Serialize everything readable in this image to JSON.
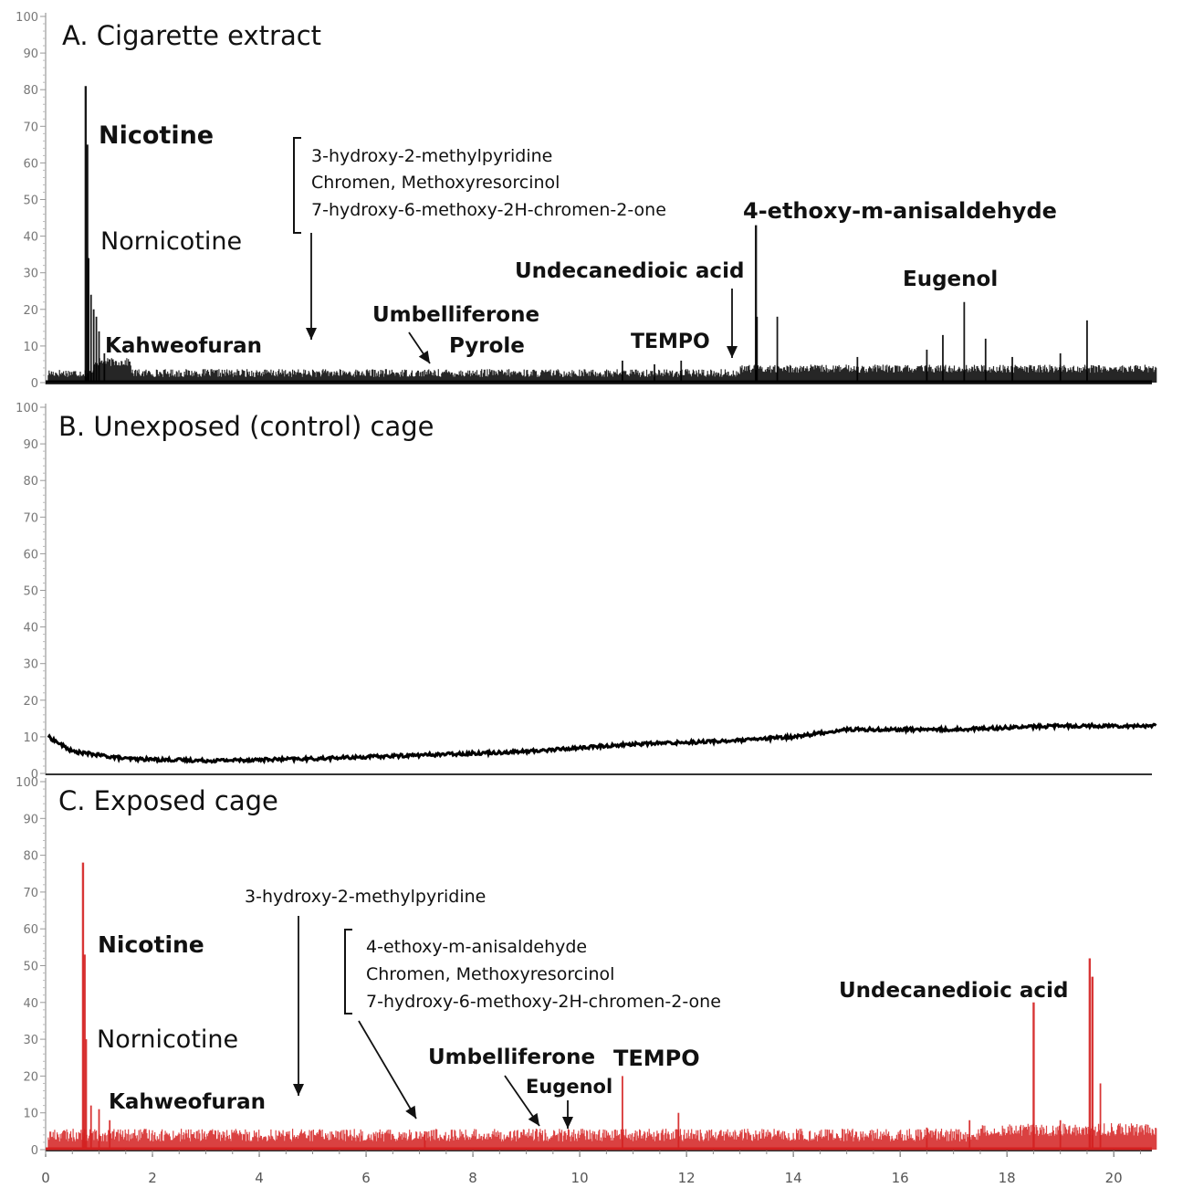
{
  "chart_data": [
    {
      "type": "line",
      "title": "A. Cigarette extract",
      "color": "#000000",
      "xlim": [
        0,
        20.8
      ],
      "ylim": [
        0,
        100
      ],
      "y_ticks": [
        "0",
        "10",
        "20",
        "30",
        "40",
        "50",
        "60",
        "70",
        "80",
        "90",
        "100"
      ],
      "peaks": [
        {
          "x": 0.75,
          "y": 81
        },
        {
          "x": 0.78,
          "y": 65
        },
        {
          "x": 0.8,
          "y": 34
        },
        {
          "x": 0.85,
          "y": 24
        },
        {
          "x": 0.9,
          "y": 20
        },
        {
          "x": 0.95,
          "y": 18
        },
        {
          "x": 1.0,
          "y": 14
        },
        {
          "x": 1.1,
          "y": 8
        },
        {
          "x": 10.8,
          "y": 6
        },
        {
          "x": 11.4,
          "y": 5
        },
        {
          "x": 11.9,
          "y": 6
        },
        {
          "x": 13.3,
          "y": 43
        },
        {
          "x": 13.32,
          "y": 18
        },
        {
          "x": 13.7,
          "y": 18
        },
        {
          "x": 15.2,
          "y": 7
        },
        {
          "x": 16.5,
          "y": 9
        },
        {
          "x": 16.8,
          "y": 13
        },
        {
          "x": 17.2,
          "y": 22
        },
        {
          "x": 17.6,
          "y": 12
        },
        {
          "x": 18.1,
          "y": 7
        },
        {
          "x": 19.0,
          "y": 8
        },
        {
          "x": 19.5,
          "y": 17
        }
      ],
      "annotations": [
        {
          "text": "Nicotine"
        },
        {
          "text": "Nornicotine"
        },
        {
          "text": "Kahweofuran"
        },
        {
          "text": "3-hydroxy-2-methylpyridine"
        },
        {
          "text": "Chromen, Methoxyresorcinol"
        },
        {
          "text": "7-hydroxy-6-methoxy-2H-chromen-2-one"
        },
        {
          "text": "Umbelliferone"
        },
        {
          "text": "Pyrole"
        },
        {
          "text": "Undecanedioic acid"
        },
        {
          "text": "TEMPO"
        },
        {
          "text": "4-ethoxy-m-anisaldehyde"
        },
        {
          "text": "Eugenol"
        }
      ]
    },
    {
      "type": "line",
      "title": "B. Unexposed (control) cage",
      "color": "#000000",
      "xlim": [
        0,
        20.8
      ],
      "ylim": [
        0,
        100
      ],
      "y_ticks": [
        "0",
        "10",
        "20",
        "30",
        "40",
        "50",
        "60",
        "70",
        "80",
        "90",
        "100"
      ],
      "baseline": [
        {
          "x": 0.05,
          "y": 10
        },
        {
          "x": 0.5,
          "y": 6
        },
        {
          "x": 1.5,
          "y": 4
        },
        {
          "x": 3,
          "y": 3.5
        },
        {
          "x": 5,
          "y": 4
        },
        {
          "x": 7,
          "y": 5
        },
        {
          "x": 9,
          "y": 6
        },
        {
          "x": 10,
          "y": 7
        },
        {
          "x": 11,
          "y": 8
        },
        {
          "x": 13,
          "y": 9
        },
        {
          "x": 14,
          "y": 10
        },
        {
          "x": 15,
          "y": 12
        },
        {
          "x": 17,
          "y": 12
        },
        {
          "x": 19,
          "y": 13
        },
        {
          "x": 20.8,
          "y": 13
        }
      ],
      "annotations": []
    },
    {
      "type": "line",
      "title": "C. Exposed cage",
      "color": "#d42020",
      "xlim": [
        0,
        20.8
      ],
      "ylim": [
        0,
        100
      ],
      "x_ticks": [
        "0",
        "2",
        "4",
        "6",
        "8",
        "10",
        "12",
        "14",
        "16",
        "18",
        "20"
      ],
      "y_ticks": [
        "0",
        "10",
        "20",
        "30",
        "40",
        "50",
        "60",
        "70",
        "80",
        "90",
        "100"
      ],
      "peaks": [
        {
          "x": 0.7,
          "y": 78
        },
        {
          "x": 0.73,
          "y": 53
        },
        {
          "x": 0.76,
          "y": 30
        },
        {
          "x": 0.85,
          "y": 12
        },
        {
          "x": 1.0,
          "y": 11
        },
        {
          "x": 1.2,
          "y": 8
        },
        {
          "x": 7.1,
          "y": 5
        },
        {
          "x": 10.8,
          "y": 20
        },
        {
          "x": 11.85,
          "y": 10
        },
        {
          "x": 16.5,
          "y": 6
        },
        {
          "x": 17.3,
          "y": 8
        },
        {
          "x": 18.5,
          "y": 40
        },
        {
          "x": 19.0,
          "y": 8
        },
        {
          "x": 19.55,
          "y": 52
        },
        {
          "x": 19.6,
          "y": 47
        },
        {
          "x": 19.75,
          "y": 18
        }
      ],
      "annotations": [
        {
          "text": "Nicotine"
        },
        {
          "text": "Nornicotine"
        },
        {
          "text": "Kahweofuran"
        },
        {
          "text": "3-hydroxy-2-methylpyridine"
        },
        {
          "text": "4-ethoxy-m-anisaldehyde"
        },
        {
          "text": "Chromen, Methoxyresorcinol"
        },
        {
          "text": "7-hydroxy-6-methoxy-2H-chromen-2-one"
        },
        {
          "text": "Umbelliferone"
        },
        {
          "text": "Eugenol"
        },
        {
          "text": "TEMPO"
        },
        {
          "text": "Undecanedioic acid"
        }
      ]
    }
  ]
}
